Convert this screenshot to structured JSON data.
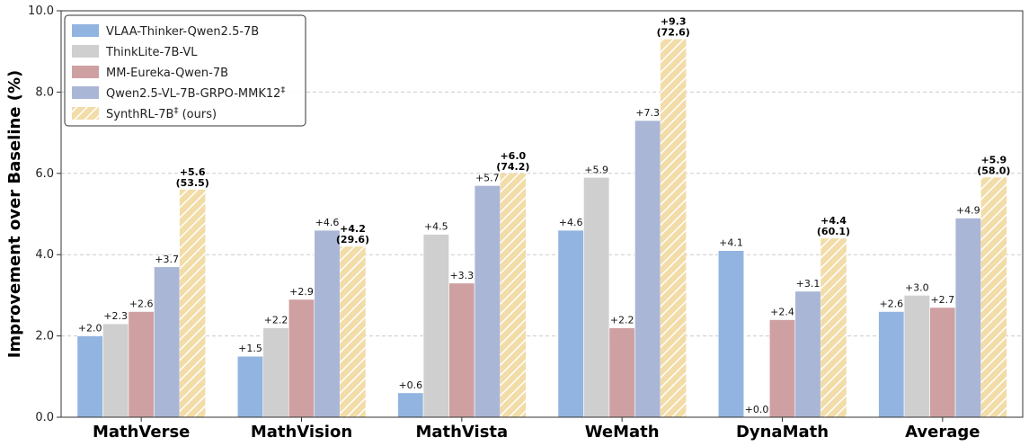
{
  "chart_data": {
    "type": "bar",
    "ylabel": "Improvement over Baseline (%)",
    "ylim": [
      0,
      10
    ],
    "yticks": [
      0,
      2,
      4,
      6,
      8,
      10
    ],
    "ytick_labels": [
      "0.0",
      "2.0",
      "4.0",
      "6.0",
      "8.0",
      "10.0"
    ],
    "grid": "horizontal-dashed",
    "legend_position": "top-left",
    "categories": [
      "MathVerse",
      "MathVision",
      "MathVista",
      "WeMath",
      "DynaMath",
      "Average"
    ],
    "series": [
      {
        "name": "VLAA-Thinker-Qwen2.5-7B",
        "color": "#92b4e0",
        "hatched": false,
        "values": [
          2.0,
          1.5,
          0.6,
          4.6,
          4.1,
          2.6
        ],
        "labels": [
          "+2.0",
          "+1.5",
          "+0.6",
          "+4.6",
          "+4.1",
          "+2.6"
        ]
      },
      {
        "name": "ThinkLite-7B-VL",
        "color": "#cfcfcf",
        "hatched": false,
        "values": [
          2.3,
          2.2,
          4.5,
          5.9,
          0.0,
          3.0
        ],
        "labels": [
          "+2.3",
          "+2.2",
          "+4.5",
          "+5.9",
          "+0.0",
          "+3.0"
        ]
      },
      {
        "name": "MM-Eureka-Qwen-7B",
        "color": "#cfa0a2",
        "hatched": false,
        "values": [
          2.6,
          2.9,
          3.3,
          2.2,
          2.4,
          2.7
        ],
        "labels": [
          "+2.6",
          "+2.9",
          "+3.3",
          "+2.2",
          "+2.4",
          "+2.7"
        ]
      },
      {
        "name": "Qwen2.5-VL-7B-GRPO-MMK12",
        "name_sup": "‡",
        "color": "#aab6d6",
        "hatched": false,
        "values": [
          3.7,
          4.6,
          5.7,
          7.3,
          3.1,
          4.9
        ],
        "labels": [
          "+3.7",
          "+4.6",
          "+5.7",
          "+7.3",
          "+3.1",
          "+4.9"
        ]
      },
      {
        "name": "SynthRL-7B",
        "name_sup": "‡",
        "name_suffix": " (ours)",
        "color": "#f2dca8",
        "hatched": true,
        "values": [
          5.6,
          4.2,
          6.0,
          9.3,
          4.4,
          5.9
        ],
        "labels": [
          "+5.6",
          "+4.2",
          "+6.0",
          "+9.3",
          "+4.4",
          "+5.9"
        ],
        "sub_labels": [
          "(53.5)",
          "(29.6)",
          "(74.2)",
          "(72.6)",
          "(60.1)",
          "(58.0)"
        ]
      }
    ]
  }
}
